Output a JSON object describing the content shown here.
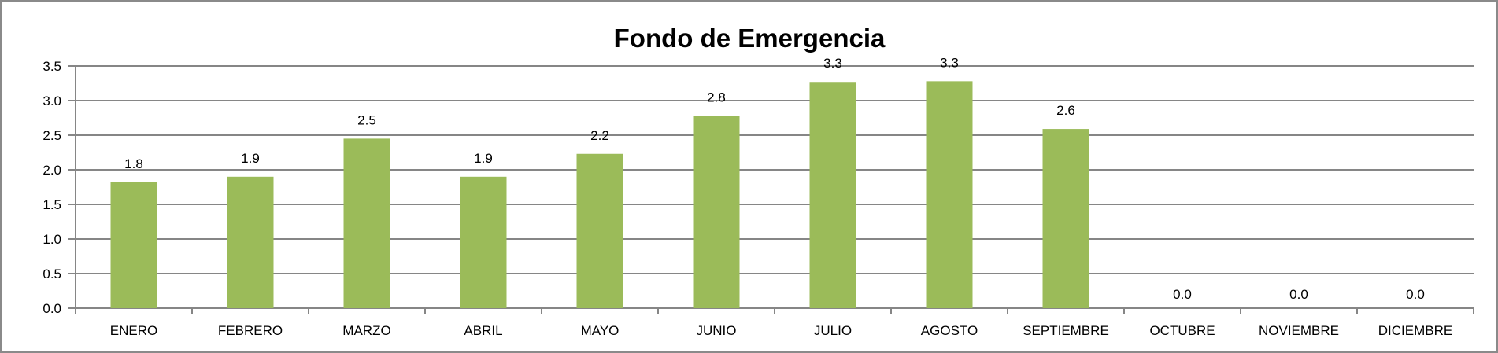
{
  "chart_data": {
    "type": "bar",
    "title": "Fondo de Emergencia",
    "xlabel": "",
    "ylabel": "",
    "categories": [
      "ENERO",
      "FEBRERO",
      "MARZO",
      "ABRIL",
      "MAYO",
      "JUNIO",
      "JULIO",
      "AGOSTO",
      "SEPTIEMBRE",
      "OCTUBRE",
      "NOVIEMBRE",
      "DICIEMBRE"
    ],
    "values": [
      1.82,
      1.9,
      2.45,
      1.9,
      2.23,
      2.78,
      3.27,
      3.28,
      2.59,
      0.0,
      0.0,
      0.0
    ],
    "data_labels": [
      "1.8",
      "1.9",
      "2.5",
      "1.9",
      "2.2",
      "2.8",
      "3.3",
      "3.3",
      "2.6",
      "0.0",
      "0.0",
      "0.0"
    ],
    "ylim": [
      0,
      3.5
    ],
    "yticks": [
      "0.0",
      "0.5",
      "1.0",
      "1.5",
      "2.0",
      "2.5",
      "3.0",
      "3.5"
    ],
    "grid": true,
    "legend": "none",
    "bar_color": "#9bbb59",
    "grid_color": "#868686"
  }
}
